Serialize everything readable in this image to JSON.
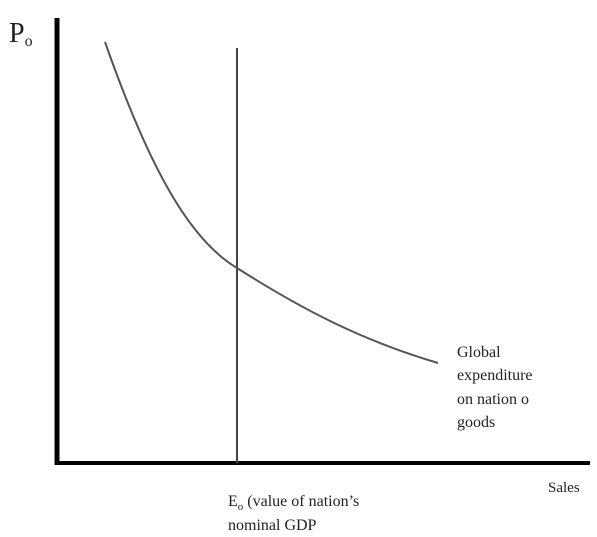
{
  "y_axis_label": {
    "symbol": "P",
    "subscript": "o"
  },
  "x_axis_label": "Sales",
  "curve_label": {
    "lines": [
      "Global",
      "expenditure",
      "on nation o",
      "goods"
    ]
  },
  "vertical_line_label": {
    "symbol": "E",
    "subscript": "o",
    "lines": [
      "(value of nation’s",
      "nominal GDP"
    ]
  }
}
